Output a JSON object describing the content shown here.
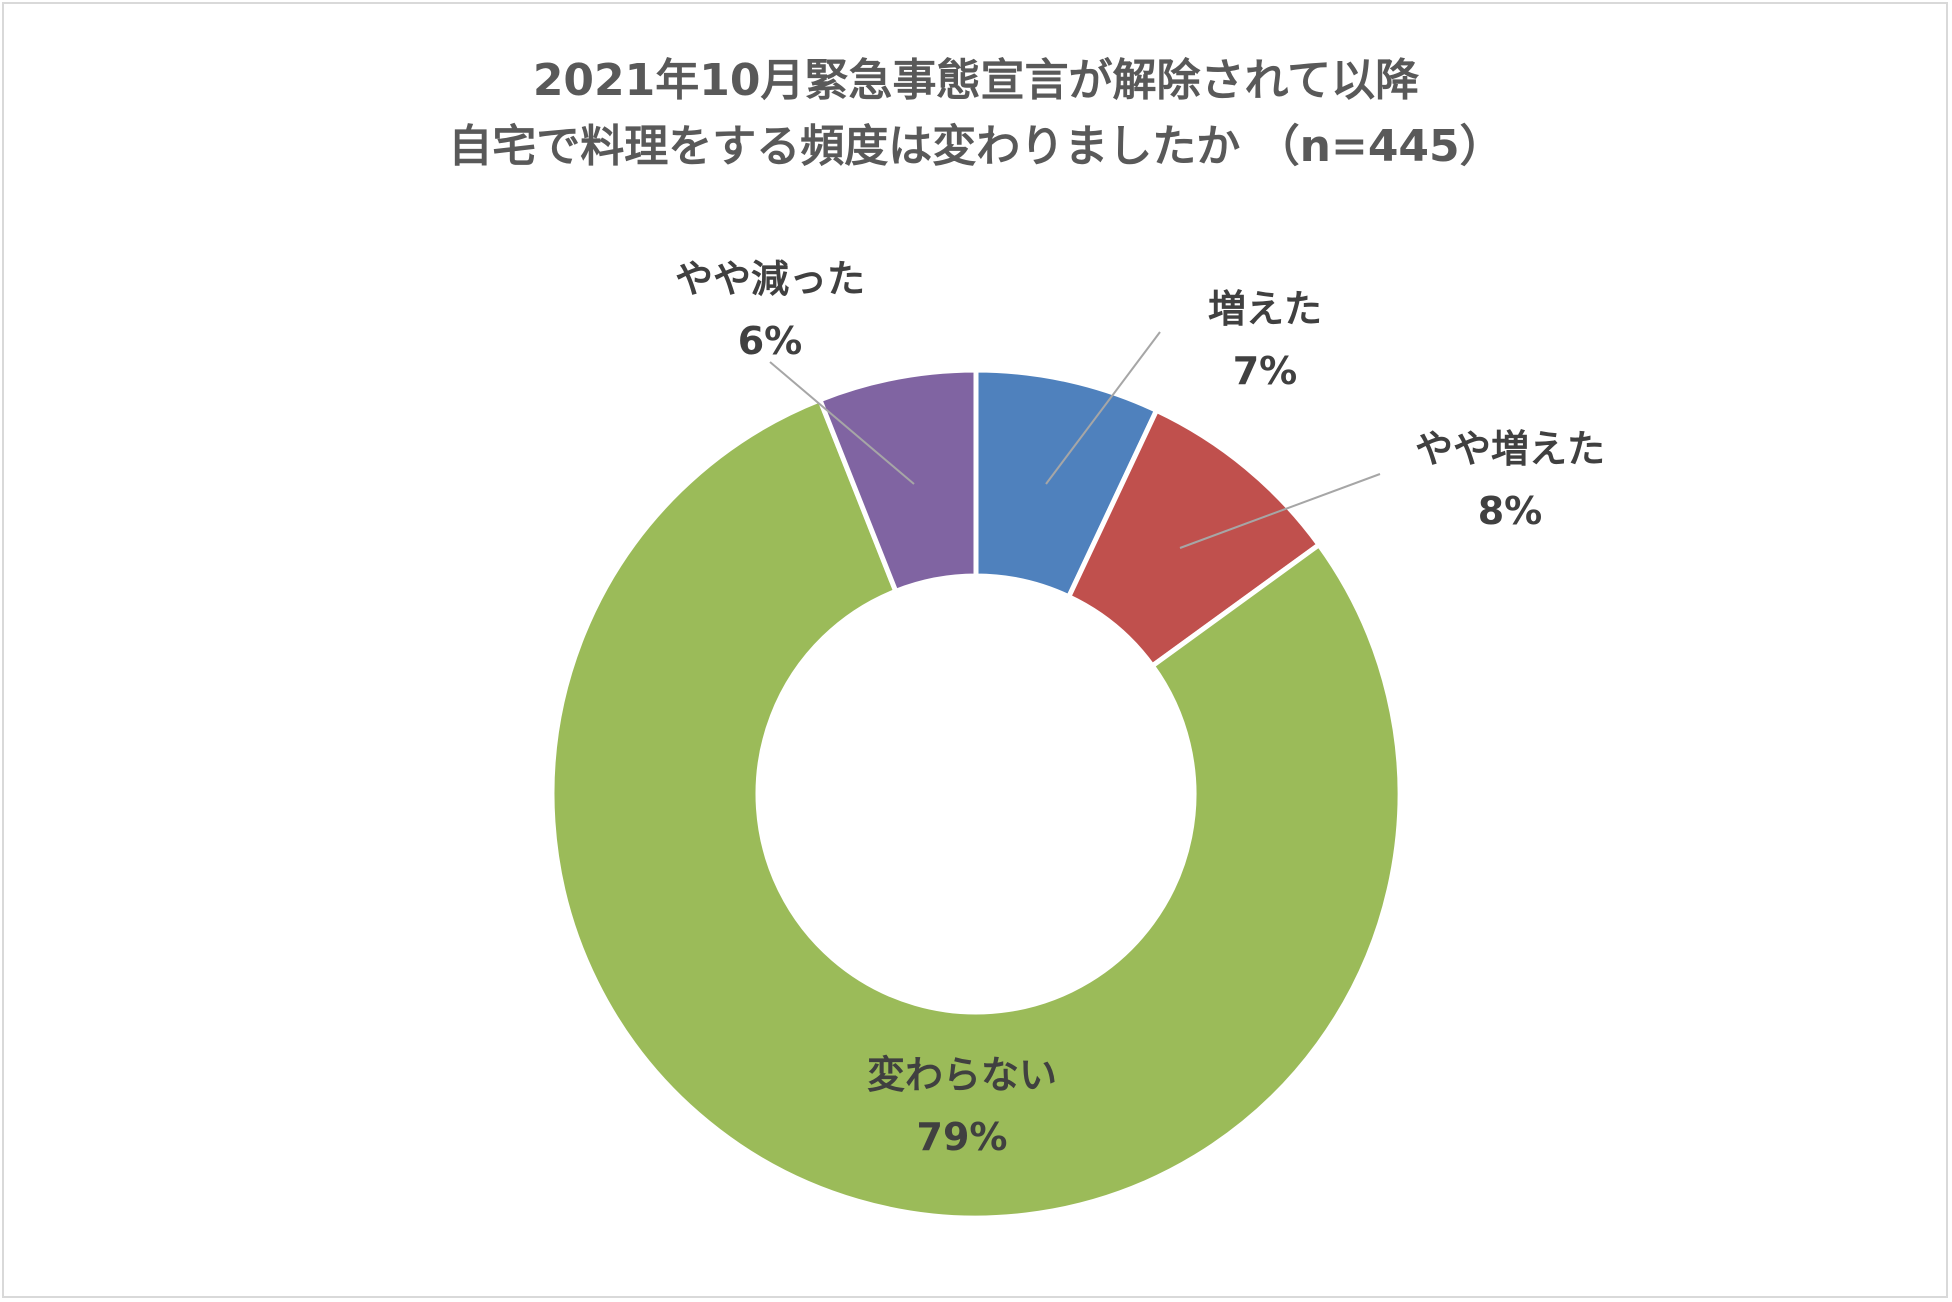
{
  "chart_data": {
    "type": "pie",
    "variant": "donut",
    "title_lines": [
      "2021年10月緊急事態宣言が解除されて以降",
      "自宅で料理をする頻度は変わりましたか （n=445）"
    ],
    "categories": [
      "増えた",
      "やや増えた",
      "変わらない",
      "やや減った"
    ],
    "values": [
      7,
      8,
      79,
      6
    ],
    "value_labels": [
      "7%",
      "8%",
      "79%",
      "6%"
    ],
    "colors": [
      "#4f81bd",
      "#c0504d",
      "#9bbb59",
      "#8064a2"
    ],
    "legend": "none",
    "start_angle_deg": 0,
    "direction": "clockwise"
  }
}
